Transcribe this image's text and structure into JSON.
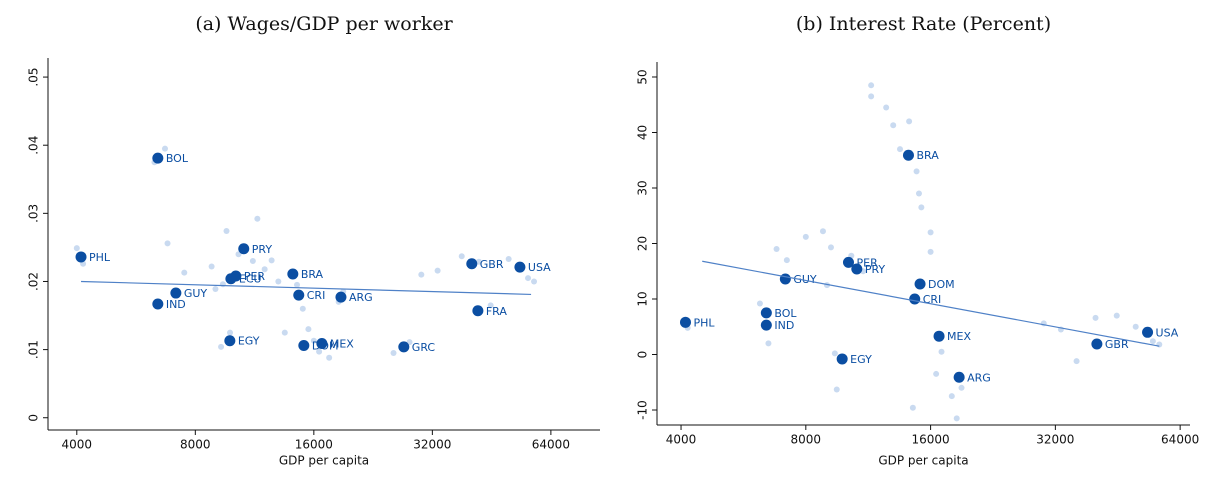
{
  "chart_data": [
    {
      "type": "scatter",
      "title": "(a) Wages/GDP per worker",
      "x_label": "GDP per capita",
      "log_x": true,
      "xlim": [
        3380,
        85300
      ],
      "xticks": [
        4000,
        8000,
        16000,
        32000,
        64000
      ],
      "ylim": [
        -0.0018,
        0.0528
      ],
      "yticks": [
        0,
        {
          "value": 0.01,
          "label": ".01"
        },
        {
          "value": 0.02,
          "label": ".02"
        },
        {
          "value": 0.03,
          "label": ".03"
        },
        {
          "value": 0.04,
          "label": ".04"
        },
        {
          "value": 0.05,
          "label": ".05"
        }
      ],
      "series": [
        {
          "color": "#c9daf0",
          "x": [
            4000,
            4150,
            6300,
            6700,
            6800,
            7500,
            8800,
            9000,
            9400,
            9600,
            9300,
            9800,
            10300,
            11500,
            11200,
            12000,
            12500,
            13000,
            13500,
            14500,
            15000,
            15500,
            16000,
            16500,
            17500,
            18500,
            19000,
            25500,
            28000,
            30000,
            33000,
            38000,
            42000,
            45000,
            50000,
            56000,
            58000
          ],
          "values": [
            0.0249,
            0.0226,
            0.0375,
            0.0395,
            0.0256,
            0.0213,
            0.0222,
            0.0189,
            0.0196,
            0.0274,
            0.0104,
            0.0125,
            0.024,
            0.0292,
            0.023,
            0.0218,
            0.0231,
            0.02,
            0.0125,
            0.0195,
            0.016,
            0.013,
            0.0113,
            0.0097,
            0.0088,
            0.017,
            0.0185,
            0.0095,
            0.0111,
            0.021,
            0.0216,
            0.0237,
            0.0229,
            0.0165,
            0.0233,
            0.0205,
            0.02
          ]
        },
        {
          "color": "#0b4ea2",
          "labels": [
            "PHL",
            "BOL",
            "IND",
            "GUY",
            "EGY",
            "PER",
            "ECU",
            "PRY",
            "BRA",
            "CRI",
            "DOM",
            "MEX",
            "ARG",
            "GRC",
            "GBR",
            "FRA",
            "USA"
          ],
          "x": [
            4100,
            6425,
            6425,
            7140,
            9790,
            10140,
            9850,
            10620,
            14150,
            14650,
            15090,
            16770,
            18750,
            27080,
            40300,
            41760,
            53400
          ],
          "values": [
            0.0236,
            0.0381,
            0.0167,
            0.0183,
            0.0113,
            0.0208,
            0.0204,
            0.0248,
            0.0211,
            0.018,
            0.0106,
            0.0109,
            0.0177,
            0.0104,
            0.0226,
            0.0157,
            0.0221
          ]
        }
      ],
      "fit": {
        "color": "#4f81c7",
        "x": [
          4100,
          57000
        ],
        "values": [
          0.02,
          0.0181
        ]
      }
    },
    {
      "type": "scatter",
      "title": "(b) Interest Rate (Percent)",
      "x_label": "GDP per capita",
      "log_x": true,
      "xlim": [
        3500,
        67600
      ],
      "xticks": [
        4000,
        8000,
        16000,
        32000,
        64000
      ],
      "ylim": [
        -12.7,
        52.7
      ],
      "yticks": [
        -10,
        0,
        10,
        20,
        30,
        40,
        50
      ],
      "series": [
        {
          "color": "#c9daf0",
          "x": [
            4100,
            4150,
            6200,
            6500,
            6800,
            7200,
            8000,
            8800,
            9000,
            9400,
            9500,
            9200,
            10300,
            11000,
            11500,
            11500,
            12500,
            13000,
            13500,
            14200,
            14500,
            14800,
            15000,
            15200,
            16000,
            16000,
            16500,
            17000,
            18500,
            18000,
            19000,
            30000,
            33000,
            36000,
            40000,
            45000,
            50000,
            57000,
            55000
          ],
          "values": [
            6.3,
            4.8,
            9.2,
            2.0,
            19.0,
            17.0,
            21.2,
            22.2,
            12.5,
            0.2,
            -6.3,
            19.3,
            17.8,
            15.0,
            48.5,
            46.5,
            44.5,
            41.3,
            37.0,
            42.0,
            -9.6,
            33.0,
            29.0,
            26.5,
            22.0,
            18.5,
            -3.5,
            0.5,
            -11.5,
            -7.5,
            -6.0,
            5.6,
            4.5,
            -1.2,
            6.6,
            7.0,
            5.0,
            1.8,
            2.4
          ]
        },
        {
          "color": "#0b4ea2",
          "labels": [
            "PHL",
            "BOL",
            "IND",
            "GUY",
            "EGY",
            "PER",
            "PRY",
            "BRA",
            "DOM",
            "CRI",
            "MEX",
            "ARG",
            "GBR",
            "USA"
          ],
          "x": [
            4100,
            6425,
            6425,
            7140,
            9790,
            10140,
            10620,
            14150,
            15090,
            14650,
            16770,
            18750,
            40300,
            53400
          ],
          "values": [
            5.8,
            7.5,
            5.3,
            13.6,
            -0.8,
            16.6,
            15.4,
            35.9,
            12.7,
            10.0,
            3.3,
            -4.1,
            1.9,
            4.0
          ]
        }
      ],
      "fit": {
        "color": "#4f81c7",
        "x": [
          4500,
          57000
        ],
        "values": [
          16.8,
          1.5
        ]
      }
    }
  ]
}
